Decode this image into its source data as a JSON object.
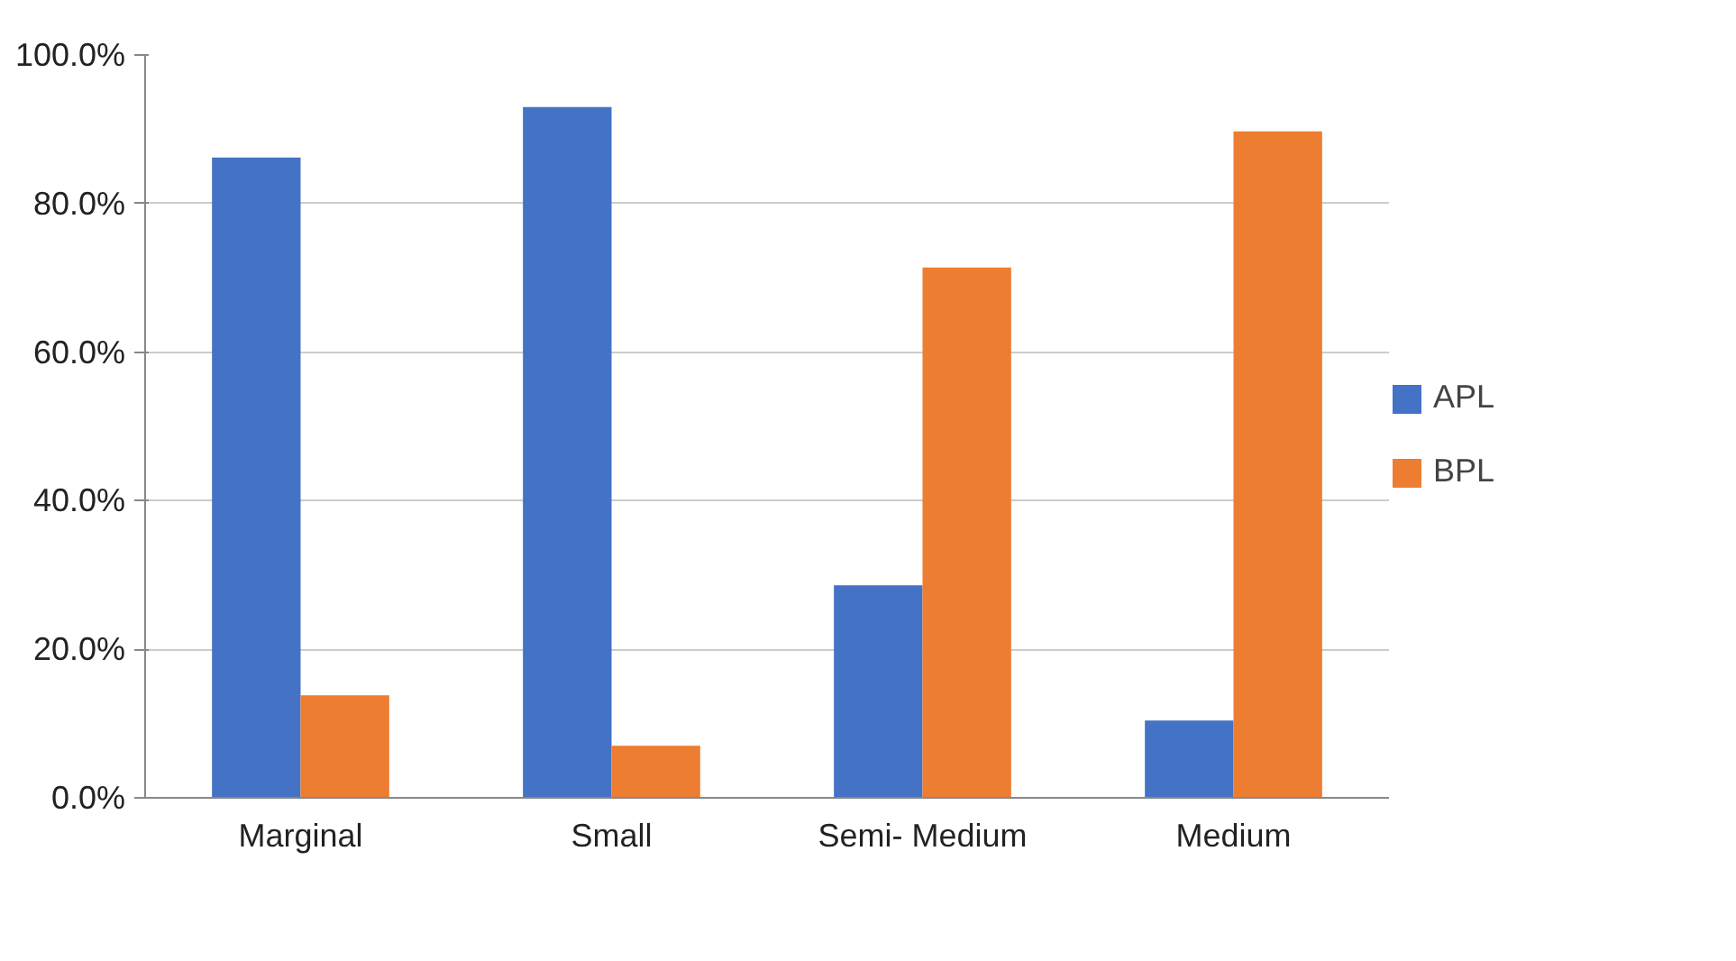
{
  "chart_data": {
    "type": "bar",
    "categories": [
      "Marginal",
      "Small",
      "Semi- Medium",
      "Medium"
    ],
    "series": [
      {
        "name": "APL",
        "color": "#4472c4",
        "values": [
          86.2,
          93.0,
          28.6,
          10.4
        ]
      },
      {
        "name": "BPL",
        "color": "#ed7d31",
        "values": [
          13.8,
          7.0,
          71.4,
          89.7
        ]
      }
    ],
    "ylim": [
      0,
      100
    ],
    "yticks": [
      {
        "value": 0,
        "label": "0.0%"
      },
      {
        "value": 20,
        "label": "20.0%"
      },
      {
        "value": 40,
        "label": "40.0%"
      },
      {
        "value": 60,
        "label": "60.0%"
      },
      {
        "value": 80,
        "label": "80.0%"
      },
      {
        "value": 100,
        "label": "100.0%"
      }
    ],
    "grid": "y",
    "legend": "right"
  }
}
